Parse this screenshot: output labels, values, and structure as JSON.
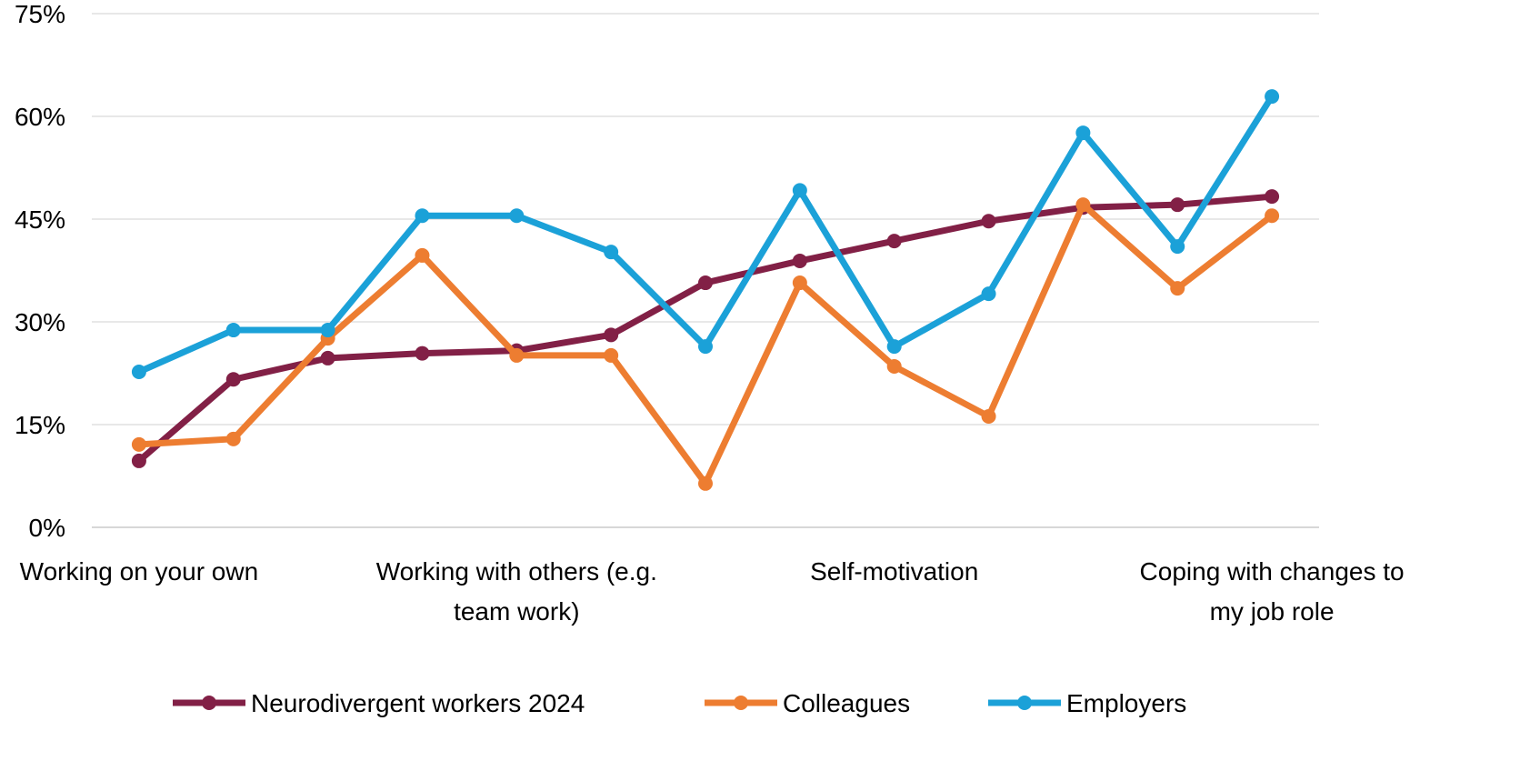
{
  "chart_data": {
    "type": "line",
    "title": "",
    "xlabel": "",
    "ylabel": "",
    "ylim": [
      0,
      75
    ],
    "yticks": [
      0,
      15,
      30,
      45,
      60,
      75
    ],
    "ytick_labels": [
      "0%",
      "15%",
      "30%",
      "45%",
      "60%",
      "75%"
    ],
    "grid": true,
    "legend_position": "bottom",
    "categories": [
      [
        "Working on your own"
      ],
      [],
      [],
      [],
      [
        "Working with others (e.g.",
        "team work)"
      ],
      [],
      [],
      [],
      [
        "Self-motivation"
      ],
      [],
      [],
      [],
      [
        "Coping with changes to",
        "my job role"
      ]
    ],
    "series": [
      {
        "name": "Neurodivergent workers 2024",
        "color": "#822046",
        "values": [
          9.7,
          21.6,
          24.7,
          25.4,
          25.8,
          28.1,
          35.7,
          38.9,
          41.8,
          44.7,
          46.7,
          47.1,
          48.3
        ]
      },
      {
        "name": "Colleagues",
        "color": "#ED7D31",
        "values": [
          12.1,
          12.9,
          27.6,
          39.7,
          25.1,
          25.1,
          6.4,
          35.7,
          23.5,
          16.2,
          47.1,
          34.9,
          45.5
        ]
      },
      {
        "name": "Employers",
        "color": "#1BA1D8",
        "values": [
          22.7,
          28.8,
          28.8,
          45.5,
          45.5,
          40.2,
          26.4,
          49.2,
          26.4,
          34.1,
          57.6,
          41.0,
          62.9
        ]
      }
    ]
  }
}
